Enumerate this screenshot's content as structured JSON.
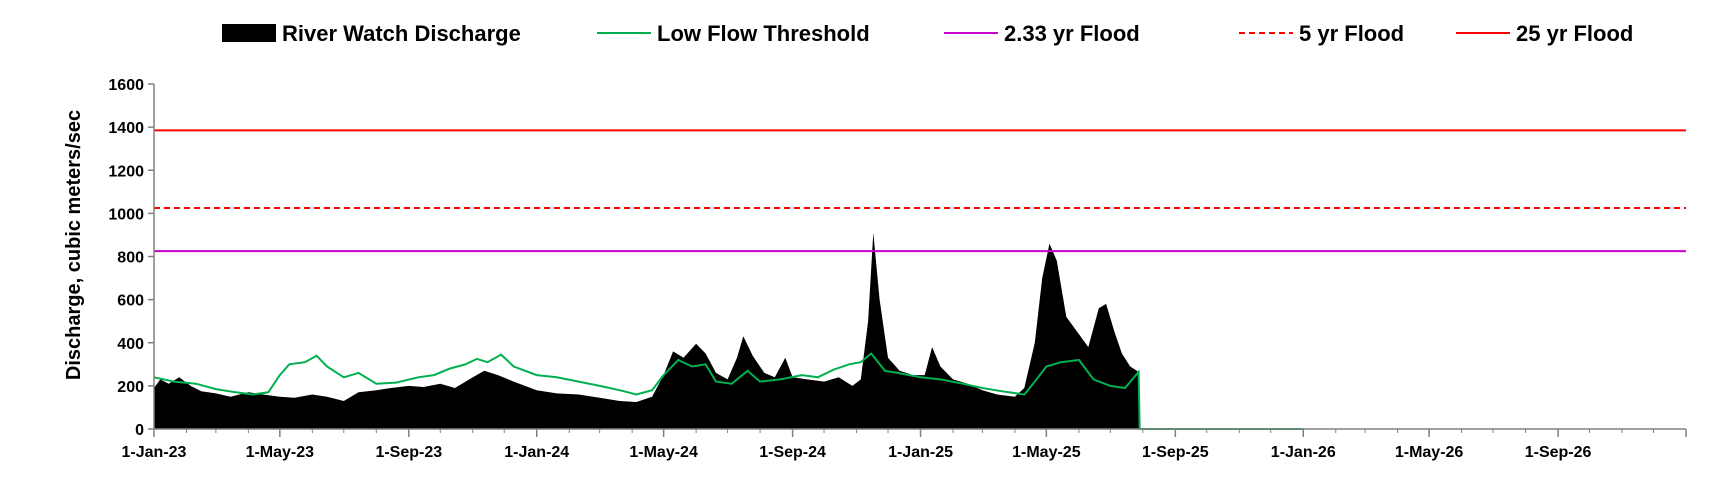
{
  "chart_data": {
    "type": "area",
    "title": "",
    "xlabel": "",
    "ylabel": "Discharge, cubic meters/sec",
    "ylim": [
      0,
      1600
    ],
    "xlim": [
      "2023-01-01",
      "2027-01-01"
    ],
    "y_ticks": [
      "0",
      "200",
      "400",
      "600",
      "800",
      "1000",
      "1200",
      "1400",
      "1600"
    ],
    "x_ticks": [
      {
        "date": "2023-01-01",
        "label": "1-Jan-23"
      },
      {
        "date": "2023-05-01",
        "label": "1-May-23"
      },
      {
        "date": "2023-09-01",
        "label": "1-Sep-23"
      },
      {
        "date": "2024-01-01",
        "label": "1-Jan-24"
      },
      {
        "date": "2024-05-01",
        "label": "1-May-24"
      },
      {
        "date": "2024-09-01",
        "label": "1-Sep-24"
      },
      {
        "date": "2025-01-01",
        "label": "1-Jan-25"
      },
      {
        "date": "2025-05-01",
        "label": "1-May-25"
      },
      {
        "date": "2025-09-01",
        "label": "1-Sep-25"
      },
      {
        "date": "2026-01-01",
        "label": "1-Jan-26"
      },
      {
        "date": "2026-05-01",
        "label": "1-May-26"
      },
      {
        "date": "2026-09-01",
        "label": "1-Sep-26"
      }
    ],
    "grid": false,
    "legend_position": "top",
    "legend": [
      {
        "label": "River Watch Discharge",
        "color": "#000000",
        "style": "area"
      },
      {
        "label": "Low Flow Threshold",
        "color": "#00b050",
        "style": "line"
      },
      {
        "label": "2.33 yr Flood",
        "color": "#cc00cc",
        "style": "line"
      },
      {
        "label": "5 yr Flood",
        "color": "#ff0000",
        "style": "dashed"
      },
      {
        "label": "25 yr Flood",
        "color": "#ff0000",
        "style": "line"
      }
    ],
    "thresholds": [
      {
        "name": "2.33 yr Flood",
        "value": 825,
        "color": "#cc00cc",
        "dashed": false
      },
      {
        "name": "5 yr Flood",
        "value": 1025,
        "color": "#ff0000",
        "dashed": true
      },
      {
        "name": "25 yr Flood",
        "value": 1385,
        "color": "#ff0000",
        "dashed": false
      }
    ],
    "series": [
      {
        "name": "River Watch Discharge",
        "color": "#000000",
        "points": [
          [
            "2023-01-01",
            190
          ],
          [
            "2023-01-07",
            230
          ],
          [
            "2023-01-15",
            210
          ],
          [
            "2023-01-25",
            240
          ],
          [
            "2023-02-05",
            200
          ],
          [
            "2023-02-15",
            175
          ],
          [
            "2023-03-01",
            165
          ],
          [
            "2023-03-15",
            150
          ],
          [
            "2023-04-01",
            170
          ],
          [
            "2023-04-15",
            160
          ],
          [
            "2023-05-01",
            150
          ],
          [
            "2023-05-15",
            145
          ],
          [
            "2023-06-01",
            160
          ],
          [
            "2023-06-15",
            150
          ],
          [
            "2023-07-01",
            130
          ],
          [
            "2023-07-15",
            170
          ],
          [
            "2023-08-01",
            180
          ],
          [
            "2023-08-15",
            190
          ],
          [
            "2023-09-01",
            200
          ],
          [
            "2023-09-15",
            195
          ],
          [
            "2023-10-01",
            210
          ],
          [
            "2023-10-15",
            190
          ],
          [
            "2023-11-01",
            240
          ],
          [
            "2023-11-12",
            270
          ],
          [
            "2023-11-25",
            250
          ],
          [
            "2023-12-10",
            220
          ],
          [
            "2024-01-01",
            180
          ],
          [
            "2024-01-20",
            165
          ],
          [
            "2024-02-10",
            160
          ],
          [
            "2024-03-01",
            145
          ],
          [
            "2024-03-20",
            130
          ],
          [
            "2024-04-05",
            125
          ],
          [
            "2024-04-20",
            150
          ],
          [
            "2024-05-01",
            250
          ],
          [
            "2024-05-10",
            360
          ],
          [
            "2024-05-20",
            330
          ],
          [
            "2024-06-01",
            395
          ],
          [
            "2024-06-10",
            350
          ],
          [
            "2024-06-20",
            260
          ],
          [
            "2024-07-01",
            230
          ],
          [
            "2024-07-10",
            330
          ],
          [
            "2024-07-16",
            430
          ],
          [
            "2024-07-25",
            340
          ],
          [
            "2024-08-05",
            260
          ],
          [
            "2024-08-15",
            240
          ],
          [
            "2024-08-25",
            330
          ],
          [
            "2024-09-01",
            240
          ],
          [
            "2024-09-15",
            230
          ],
          [
            "2024-10-01",
            220
          ],
          [
            "2024-10-15",
            240
          ],
          [
            "2024-10-28",
            200
          ],
          [
            "2024-11-05",
            230
          ],
          [
            "2024-11-12",
            500
          ],
          [
            "2024-11-17",
            910
          ],
          [
            "2024-11-23",
            600
          ],
          [
            "2024-12-01",
            330
          ],
          [
            "2024-12-12",
            270
          ],
          [
            "2024-12-25",
            250
          ],
          [
            "2025-01-05",
            250
          ],
          [
            "2025-01-12",
            380
          ],
          [
            "2025-01-20",
            290
          ],
          [
            "2025-02-01",
            230
          ],
          [
            "2025-02-15",
            210
          ],
          [
            "2025-03-01",
            180
          ],
          [
            "2025-03-15",
            160
          ],
          [
            "2025-04-01",
            150
          ],
          [
            "2025-04-10",
            190
          ],
          [
            "2025-04-20",
            400
          ],
          [
            "2025-04-27",
            700
          ],
          [
            "2025-05-04",
            860
          ],
          [
            "2025-05-11",
            780
          ],
          [
            "2025-05-20",
            520
          ],
          [
            "2025-06-01",
            440
          ],
          [
            "2025-06-10",
            380
          ],
          [
            "2025-06-20",
            560
          ],
          [
            "2025-06-27",
            580
          ],
          [
            "2025-07-05",
            450
          ],
          [
            "2025-07-12",
            350
          ],
          [
            "2025-07-20",
            290
          ],
          [
            "2025-07-28",
            265
          ],
          [
            "2025-07-29",
            0
          ]
        ]
      },
      {
        "name": "Low Flow Threshold",
        "color": "#00b050",
        "points": [
          [
            "2023-01-01",
            240
          ],
          [
            "2023-01-20",
            220
          ],
          [
            "2023-02-10",
            210
          ],
          [
            "2023-03-01",
            185
          ],
          [
            "2023-03-20",
            170
          ],
          [
            "2023-04-05",
            160
          ],
          [
            "2023-04-20",
            170
          ],
          [
            "2023-05-01",
            250
          ],
          [
            "2023-05-10",
            300
          ],
          [
            "2023-05-25",
            310
          ],
          [
            "2023-06-05",
            340
          ],
          [
            "2023-06-15",
            290
          ],
          [
            "2023-07-01",
            240
          ],
          [
            "2023-07-15",
            260
          ],
          [
            "2023-08-01",
            210
          ],
          [
            "2023-08-20",
            215
          ],
          [
            "2023-09-10",
            240
          ],
          [
            "2023-09-25",
            250
          ],
          [
            "2023-10-10",
            280
          ],
          [
            "2023-10-25",
            300
          ],
          [
            "2023-11-05",
            325
          ],
          [
            "2023-11-15",
            310
          ],
          [
            "2023-11-28",
            345
          ],
          [
            "2023-12-10",
            290
          ],
          [
            "2024-01-01",
            250
          ],
          [
            "2024-01-20",
            240
          ],
          [
            "2024-02-10",
            220
          ],
          [
            "2024-03-01",
            200
          ],
          [
            "2024-03-20",
            180
          ],
          [
            "2024-04-05",
            160
          ],
          [
            "2024-04-20",
            180
          ],
          [
            "2024-05-01",
            250
          ],
          [
            "2024-05-15",
            320
          ],
          [
            "2024-05-28",
            290
          ],
          [
            "2024-06-10",
            300
          ],
          [
            "2024-06-20",
            220
          ],
          [
            "2024-07-05",
            210
          ],
          [
            "2024-07-20",
            270
          ],
          [
            "2024-08-01",
            220
          ],
          [
            "2024-08-20",
            230
          ],
          [
            "2024-09-10",
            250
          ],
          [
            "2024-09-25",
            240
          ],
          [
            "2024-10-10",
            275
          ],
          [
            "2024-10-25",
            300
          ],
          [
            "2024-11-05",
            310
          ],
          [
            "2024-11-15",
            350
          ],
          [
            "2024-11-28",
            270
          ],
          [
            "2024-12-10",
            260
          ],
          [
            "2025-01-01",
            240
          ],
          [
            "2025-01-20",
            230
          ],
          [
            "2025-02-10",
            210
          ],
          [
            "2025-03-01",
            190
          ],
          [
            "2025-03-20",
            175
          ],
          [
            "2025-04-10",
            160
          ],
          [
            "2025-04-20",
            220
          ],
          [
            "2025-05-01",
            290
          ],
          [
            "2025-05-15",
            310
          ],
          [
            "2025-06-01",
            320
          ],
          [
            "2025-06-15",
            230
          ],
          [
            "2025-07-01",
            200
          ],
          [
            "2025-07-15",
            190
          ],
          [
            "2025-07-28",
            265
          ],
          [
            "2025-07-29",
            0
          ],
          [
            "2026-01-01",
            0
          ]
        ]
      }
    ]
  }
}
